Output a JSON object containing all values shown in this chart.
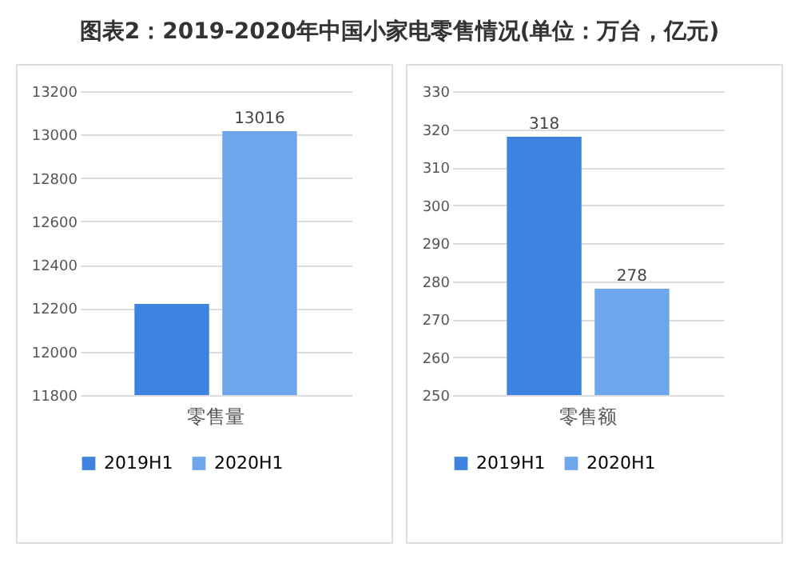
{
  "chart_data": [
    {
      "type": "bar",
      "title": "图表2：2019-2020年中国小家电零售情况(单位：万台，亿元)",
      "categories": [
        "零售量"
      ],
      "ylim": [
        11800,
        13200
      ],
      "yticks": [
        11800,
        12000,
        12200,
        12400,
        12600,
        12800,
        13000,
        13200
      ],
      "grid": "y",
      "legend": "bottom",
      "series": [
        {
          "name": "2019H1",
          "color": "#3f83e0",
          "values": [
            12220
          ],
          "value_labels": [
            null
          ]
        },
        {
          "name": "2020H1",
          "color": "#6ea6ec",
          "values": [
            13016
          ],
          "value_labels": [
            "13016"
          ]
        }
      ]
    },
    {
      "type": "bar",
      "categories": [
        "零售额"
      ],
      "ylim": [
        250,
        330
      ],
      "yticks": [
        250,
        260,
        270,
        280,
        290,
        300,
        310,
        320,
        330
      ],
      "grid": "y",
      "legend": "bottom",
      "series": [
        {
          "name": "2019H1",
          "color": "#3f83e0",
          "values": [
            318
          ],
          "value_labels": [
            "318"
          ]
        },
        {
          "name": "2020H1",
          "color": "#6ea6ec",
          "values": [
            278
          ],
          "value_labels": [
            "278"
          ]
        }
      ]
    }
  ]
}
